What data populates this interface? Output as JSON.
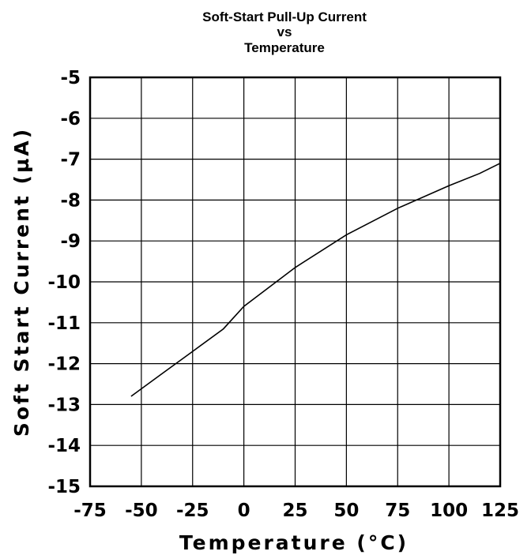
{
  "chart_data": {
    "type": "line",
    "title_lines": [
      "Soft-Start Pull-Up Current",
      "vs",
      "Temperature"
    ],
    "xlabel": "Temperature (°C)",
    "ylabel": "Soft Start Current (µA)",
    "xlim": [
      -75,
      125
    ],
    "ylim": [
      -15,
      -5
    ],
    "x_ticks": [
      -75,
      -50,
      -25,
      0,
      25,
      50,
      75,
      100,
      125
    ],
    "x_tick_labels": [
      "-75",
      "-50",
      "-25",
      "0",
      "25",
      "50",
      "75",
      "100",
      "125"
    ],
    "y_ticks": [
      -5,
      -6,
      -7,
      -8,
      -9,
      -10,
      -11,
      -12,
      -13,
      -14,
      -15
    ],
    "y_tick_labels": [
      "-5",
      "-6",
      "-7",
      "-8",
      "-9",
      "-10",
      "-11",
      "-12",
      "-13",
      "-14",
      "-15"
    ],
    "grid": true,
    "legend": "none",
    "series": [
      {
        "color": "#000000",
        "points": [
          [
            -55,
            -12.8
          ],
          [
            -40,
            -12.25
          ],
          [
            -25,
            -11.7
          ],
          [
            -10,
            -11.15
          ],
          [
            0,
            -10.6
          ],
          [
            25,
            -9.65
          ],
          [
            50,
            -8.85
          ],
          [
            75,
            -8.2
          ],
          [
            100,
            -7.65
          ],
          [
            115,
            -7.35
          ],
          [
            125,
            -7.1
          ]
        ]
      }
    ]
  }
}
